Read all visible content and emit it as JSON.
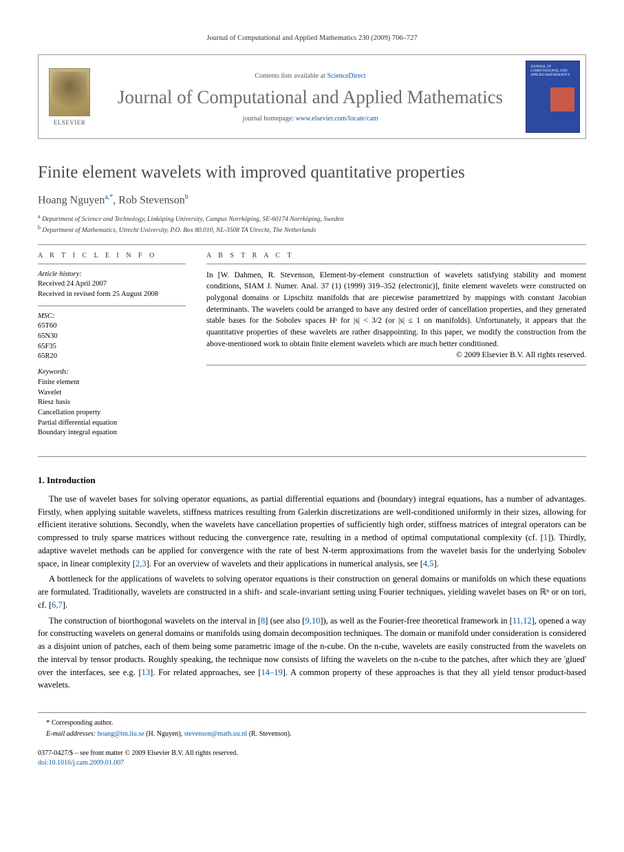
{
  "running_head": "Journal of Computational and Applied Mathematics 230 (2009) 706–727",
  "header": {
    "contents_prefix": "Contents lists available at ",
    "contents_link": "ScienceDirect",
    "journal_name": "Journal of Computational and Applied Mathematics",
    "homepage_prefix": "journal homepage: ",
    "homepage_link": "www.elsevier.com/locate/cam",
    "elsevier_word": "ELSEVIER",
    "cover_caption": "JOURNAL OF COMPUTATIONAL AND APPLIED MATHEMATICS"
  },
  "title": "Finite element wavelets with improved quantitative properties",
  "authors_html": {
    "a1_name": "Hoang Nguyen",
    "a1_sup": "a,",
    "a1_star": "*",
    "sep": ", ",
    "a2_name": "Rob Stevenson",
    "a2_sup": "b"
  },
  "affiliations": {
    "a": "Department of Science and Technology, Linköping University, Campus Norrköping, SE-60174 Norrköping, Sweden",
    "b": "Department of Mathematics, Utrecht University, P.O. Box 80.010, NL-3508 TA Utrecht, The Netherlands"
  },
  "info": {
    "heading": "A R T I C L E   I N F O",
    "history_label": "Article history:",
    "received": "Received 24 April 2007",
    "revised": "Received in revised form 25 August 2008",
    "msc_label": "MSC:",
    "msc": [
      "65T60",
      "65N30",
      "65F35",
      "65R20"
    ],
    "keywords_label": "Keywords:",
    "keywords": [
      "Finite element",
      "Wavelet",
      "Riesz basis",
      "Cancellation property",
      "Partial differential equation",
      "Boundary integral equation"
    ]
  },
  "abstract": {
    "heading": "A B S T R A C T",
    "text": "In [W. Dahmen, R. Stevenson, Element-by-element construction of wavelets satisfying stability and moment conditions, SIAM J. Numer. Anal. 37 (1) (1999) 319–352 (electronic)], finite element wavelets were constructed on polygonal domains or Lipschitz manifolds that are piecewise parametrized by mappings with constant Jacobian determinants. The wavelets could be arranged to have any desired order of cancellation properties, and they generated stable bases for the Sobolev spaces Hˢ for |s| < 3/2 (or |s| ≤ 1 on manifolds). Unfortunately, it appears that the quantitative properties of these wavelets are rather disappointing. In this paper, we modify the construction from the above-mentioned work to obtain finite element wavelets which are much better conditioned.",
    "copyright": "© 2009 Elsevier B.V. All rights reserved."
  },
  "section1": {
    "heading": "1.  Introduction",
    "p1": "The use of wavelet bases for solving operator equations, as partial differential equations and (boundary) integral equations, has a number of advantages. Firstly, when applying suitable wavelets, stiffness matrices resulting from Galerkin discretizations are well-conditioned uniformly in their sizes, allowing for efficient iterative solutions. Secondly, when the wavelets have cancellation properties of sufficiently high order, stiffness matrices of integral operators can be compressed to truly sparse matrices without reducing the convergence rate, resulting in a method of optimal computational complexity (cf. [1]). Thirdly, adaptive wavelet methods can be applied for convergence with the rate of best N-term approximations from the wavelet basis for the underlying Sobolev space, in linear complexity [2,3]. For an overview of wavelets and their applications in numerical analysis, see [4,5].",
    "p2": "A bottleneck for the applications of wavelets to solving operator equations is their construction on general domains or manifolds on which these equations are formulated. Traditionally, wavelets are constructed in a shift- and scale-invariant setting using Fourier techniques, yielding wavelet bases on ℝⁿ or on tori, cf. [6,7].",
    "p3": "The construction of biorthogonal wavelets on the interval in [8] (see also [9,10]), as well as the Fourier-free theoretical framework in [11,12], opened a way for constructing wavelets on general domains or manifolds using domain decomposition techniques. The domain or manifold under consideration is considered as a disjoint union of patches, each of them being some parametric image of the n-cube. On the n-cube, wavelets are easily constructed from the wavelets on the interval by tensor products. Roughly speaking, the technique now consists of lifting the wavelets on the n-cube to the patches, after which they are 'glued' over the interfaces, see e.g. [13]. For related approaches, see [14–19]. A common property of these approaches is that they all yield tensor product-based wavelets."
  },
  "footer": {
    "corr_label": "Corresponding author.",
    "email_label": "E-mail addresses:",
    "email1": "hoang@itn.liu.se",
    "email1_who": "(H. Nguyen),",
    "email2": "stevenson@math.uu.nl",
    "email2_who": "(R. Stevenson)."
  },
  "doi": {
    "line1": "0377-0427/$ – see front matter © 2009 Elsevier B.V. All rights reserved.",
    "doi_link": "doi:10.1016/j.cam.2009.01.007"
  },
  "ref_color": "#0a5aa3"
}
